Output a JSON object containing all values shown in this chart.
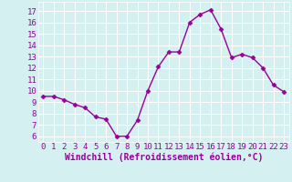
{
  "x": [
    0,
    1,
    2,
    3,
    4,
    5,
    6,
    7,
    8,
    9,
    10,
    11,
    12,
    13,
    14,
    15,
    16,
    17,
    18,
    19,
    20,
    21,
    22,
    23
  ],
  "y": [
    9.5,
    9.5,
    9.2,
    8.8,
    8.5,
    7.7,
    7.5,
    6.0,
    6.0,
    7.4,
    10.0,
    12.1,
    13.4,
    13.4,
    16.0,
    16.7,
    17.1,
    15.4,
    12.9,
    13.2,
    12.9,
    12.0,
    10.5,
    9.9
  ],
  "line_color": "#990099",
  "marker": "D",
  "marker_size": 2.5,
  "line_width": 1.0,
  "xlabel": "Windchill (Refroidissement éolien,°C)",
  "xlabel_fontsize": 7,
  "xtick_labels": [
    "0",
    "1",
    "2",
    "3",
    "4",
    "5",
    "6",
    "7",
    "8",
    "9",
    "10",
    "11",
    "12",
    "13",
    "14",
    "15",
    "16",
    "17",
    "18",
    "19",
    "20",
    "21",
    "22",
    "23"
  ],
  "ytick_values": [
    6,
    7,
    8,
    9,
    10,
    11,
    12,
    13,
    14,
    15,
    16,
    17
  ],
  "ylim": [
    5.5,
    17.8
  ],
  "xlim": [
    -0.5,
    23.5
  ],
  "bg_color": "#d4f0f0",
  "grid_color": "#ffffff",
  "tick_color": "#990099",
  "tick_fontsize": 6.5,
  "font_family": "monospace"
}
